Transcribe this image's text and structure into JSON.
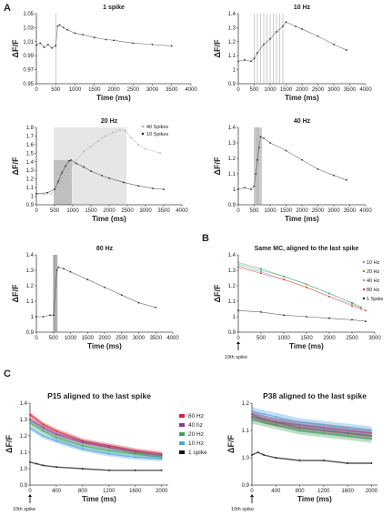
{
  "panels": {
    "A": "A",
    "B": "B",
    "C": "C"
  },
  "annotations": {
    "tenth_spike": "10th spike"
  },
  "chart_data": [
    {
      "id": "a1",
      "panel": "A",
      "type": "scatter",
      "title": "1 spike",
      "xlabel": "Time (ms)",
      "ylabel": "ΔF/F",
      "xlim": [
        0,
        4000
      ],
      "ylim": [
        0.95,
        1.05
      ],
      "xticks": [
        0,
        500,
        1000,
        1500,
        2000,
        2500,
        3000,
        3500,
        4000
      ],
      "yticks": [
        0.95,
        0.97,
        0.99,
        1.01,
        1.03,
        1.05
      ],
      "yticklabels": [
        "0.95",
        "0.97",
        "0.99",
        "1.01",
        "1.03",
        "1.05"
      ],
      "stim_lines": [
        510
      ],
      "series": [
        {
          "color": "#333333",
          "x": [
            0,
            100,
            200,
            300,
            400,
            500,
            550,
            600,
            700,
            800,
            1000,
            1200,
            1500,
            1800,
            2000,
            2500,
            3000,
            3500
          ],
          "y": [
            1.005,
            1.008,
            1.002,
            1.006,
            1.001,
            1.004,
            1.032,
            1.034,
            1.03,
            1.027,
            1.022,
            1.02,
            1.016,
            1.013,
            1.012,
            1.008,
            1.006,
            1.004
          ]
        }
      ]
    },
    {
      "id": "a2",
      "panel": "A",
      "type": "scatter",
      "title": "10 Hz",
      "xlabel": "Time (ms)",
      "ylabel": "ΔF/F",
      "xlim": [
        0,
        4000
      ],
      "ylim": [
        0.9,
        1.4
      ],
      "xticks": [
        0,
        500,
        1000,
        1500,
        2000,
        2500,
        3000,
        3500,
        4000
      ],
      "yticks": [
        0.9,
        1.0,
        1.1,
        1.2,
        1.3,
        1.4
      ],
      "yticklabels": [
        "0.9",
        "1",
        "1.1",
        "1.2",
        "1.3",
        "1.4"
      ],
      "stim_lines": [
        500,
        600,
        700,
        800,
        900,
        1000,
        1100,
        1200,
        1300,
        1400
      ],
      "series": [
        {
          "color": "#333333",
          "x": [
            0,
            200,
            400,
            500,
            600,
            800,
            1000,
            1200,
            1400,
            1500,
            1800,
            2000,
            2500,
            3000,
            3400
          ],
          "y": [
            1.06,
            1.07,
            1.06,
            1.08,
            1.12,
            1.18,
            1.22,
            1.27,
            1.31,
            1.34,
            1.31,
            1.29,
            1.24,
            1.18,
            1.14
          ]
        }
      ]
    },
    {
      "id": "a3",
      "panel": "A",
      "type": "scatter",
      "title": "20 Hz",
      "xlabel": "Time (ms)",
      "ylabel": "ΔF/F",
      "xlim": [
        0,
        4000
      ],
      "ylim": [
        0.9,
        1.8
      ],
      "xticks": [
        0,
        500,
        1000,
        1500,
        2000,
        2500,
        3000,
        3500,
        4000
      ],
      "yticks": [
        0.9,
        1.0,
        1.1,
        1.2,
        1.3,
        1.4,
        1.5,
        1.6,
        1.7,
        1.8
      ],
      "yticklabels": [
        "0.9",
        "1",
        "1.1",
        "1.2",
        "1.3",
        "1.4",
        "1.5",
        "1.6",
        "1.7",
        "1.8"
      ],
      "stim_lines_40": [
        500,
        550,
        600,
        650,
        700,
        750,
        800,
        850,
        900,
        950,
        1000,
        1050,
        1100,
        1150,
        1200,
        1250,
        1300,
        1350,
        1400,
        1450,
        1500,
        1550,
        1600,
        1650,
        1700,
        1750,
        1800,
        1850,
        1900,
        1950,
        2000,
        2050,
        2100,
        2150,
        2200,
        2250,
        2300,
        2350,
        2400,
        2450
      ],
      "stim_lines_10": [
        500,
        550,
        600,
        650,
        700,
        750,
        800,
        850,
        900,
        950
      ],
      "legend": [
        "40 Spikes",
        "10 Spikes"
      ],
      "series": [
        {
          "name": "40 Spikes",
          "color": "#b0b0b0",
          "x": [
            0,
            200,
            400,
            500,
            700,
            900,
            1100,
            1300,
            1500,
            1700,
            1900,
            2100,
            2300,
            2450,
            2600,
            2800,
            3000,
            3400
          ],
          "y": [
            1.02,
            1.02,
            1.03,
            1.06,
            1.2,
            1.32,
            1.42,
            1.52,
            1.58,
            1.64,
            1.7,
            1.74,
            1.77,
            1.76,
            1.68,
            1.6,
            1.55,
            1.5
          ]
        },
        {
          "name": "10 Spikes",
          "color": "#222222",
          "x": [
            0,
            300,
            500,
            600,
            700,
            800,
            900,
            950,
            1100,
            1300,
            1500,
            1800,
            2000,
            2400,
            2800,
            3200,
            3500
          ],
          "y": [
            1.03,
            1.04,
            1.08,
            1.17,
            1.27,
            1.35,
            1.41,
            1.42,
            1.38,
            1.34,
            1.29,
            1.24,
            1.21,
            1.16,
            1.12,
            1.09,
            1.08
          ]
        }
      ]
    },
    {
      "id": "a4",
      "panel": "A",
      "type": "scatter",
      "title": "40 Hz",
      "xlabel": "Time (ms)",
      "ylabel": "ΔF/F",
      "xlim": [
        0,
        4000
      ],
      "ylim": [
        0.9,
        1.4
      ],
      "xticks": [
        0,
        500,
        1000,
        1500,
        2000,
        2500,
        3000,
        3500,
        4000
      ],
      "yticks": [
        0.9,
        1.0,
        1.1,
        1.2,
        1.3,
        1.4
      ],
      "yticklabels": [
        "0.9",
        "1",
        "1.1",
        "1.2",
        "1.3",
        "1.4"
      ],
      "stim_lines": [
        500,
        525,
        550,
        575,
        600,
        625,
        650,
        675,
        700,
        725
      ],
      "series": [
        {
          "color": "#333333",
          "x": [
            0,
            200,
            400,
            500,
            550,
            600,
            650,
            700,
            800,
            1000,
            1500,
            2000,
            2500,
            3000,
            3400
          ],
          "y": [
            1.0,
            1.01,
            1.0,
            1.02,
            1.1,
            1.19,
            1.27,
            1.34,
            1.33,
            1.3,
            1.25,
            1.19,
            1.13,
            1.09,
            1.06
          ]
        }
      ]
    },
    {
      "id": "a5",
      "panel": "A",
      "type": "scatter",
      "title": "80 Hz",
      "xlabel": "Time (ms)",
      "ylabel": "ΔF/F",
      "xlim": [
        0,
        4000
      ],
      "ylim": [
        0.9,
        1.4
      ],
      "xticks": [
        0,
        500,
        1000,
        1500,
        2000,
        2500,
        3000,
        3500,
        4000
      ],
      "yticks": [
        0.9,
        1.0,
        1.1,
        1.2,
        1.3,
        1.4
      ],
      "yticklabels": [
        "0.9",
        "1",
        "1.1",
        "1.2",
        "1.3",
        "1.4"
      ],
      "stim_lines": [
        500,
        512,
        525,
        537,
        550,
        562,
        575,
        587,
        600,
        612
      ],
      "series": [
        {
          "color": "#333333",
          "x": [
            0,
            200,
            400,
            500,
            600,
            650,
            800,
            1000,
            1500,
            2000,
            2500,
            3000,
            3500
          ],
          "y": [
            1.0,
            1.0,
            1.01,
            1.01,
            1.3,
            1.32,
            1.31,
            1.29,
            1.24,
            1.19,
            1.14,
            1.09,
            1.06
          ]
        }
      ]
    },
    {
      "id": "b",
      "panel": "B",
      "type": "scatter",
      "title": "Same MC, aligned to the last spike",
      "xlabel": "Time (ms)",
      "ylabel": "ΔF/F",
      "xlim": [
        0,
        3000
      ],
      "ylim": [
        0.9,
        1.4
      ],
      "xticks": [
        0,
        500,
        1000,
        1500,
        2000,
        2500,
        3000
      ],
      "yticks": [
        0.9,
        1.0,
        1.1,
        1.2,
        1.3,
        1.4
      ],
      "yticklabels": [
        "0.9",
        "1",
        "1.1",
        "1.2",
        "1.3",
        "1.4"
      ],
      "legend": [
        "10 Hz",
        "20 Hz",
        "40 Hz",
        "80 Hz",
        "1 Spike"
      ],
      "series": [
        {
          "name": "10 Hz",
          "color": "#3aaed8",
          "x": [
            0,
            500,
            1000,
            1500,
            2000,
            2500,
            2700
          ],
          "y": [
            1.34,
            1.3,
            1.26,
            1.21,
            1.15,
            1.09,
            1.06
          ]
        },
        {
          "name": "20 Hz",
          "color": "#4a9a3c",
          "x": [
            0,
            500,
            1000,
            1500,
            2000,
            2500,
            2700
          ],
          "y": [
            1.35,
            1.31,
            1.26,
            1.21,
            1.15,
            1.09,
            1.06
          ]
        },
        {
          "name": "40 Hz",
          "color": "#9a9a9a",
          "x": [
            0,
            500,
            1000,
            1500,
            2000,
            2500,
            2700
          ],
          "y": [
            1.33,
            1.29,
            1.24,
            1.19,
            1.13,
            1.08,
            1.05
          ]
        },
        {
          "name": "80 Hz",
          "color": "#e0341e",
          "x": [
            0,
            500,
            1000,
            1500,
            2000,
            2500,
            2800
          ],
          "y": [
            1.32,
            1.28,
            1.24,
            1.19,
            1.13,
            1.07,
            1.04
          ]
        },
        {
          "name": "1 Spike",
          "color": "#222222",
          "x": [
            0,
            500,
            1000,
            1500,
            2000,
            2500,
            2800
          ],
          "y": [
            1.04,
            1.03,
            1.01,
            1.0,
            0.99,
            0.98,
            0.97
          ]
        }
      ]
    },
    {
      "id": "c1",
      "panel": "C",
      "type": "scatter",
      "title": "P15 aligned to the last spike",
      "xlabel": "Time (ms)",
      "ylabel": "ΔF/F",
      "xlim": [
        0,
        2100
      ],
      "ylim": [
        0.9,
        1.4
      ],
      "xticks": [
        0,
        400,
        800,
        1200,
        1600,
        2000
      ],
      "yticks": [
        0.9,
        1.0,
        1.1,
        1.2,
        1.3,
        1.4
      ],
      "yticklabels": [
        "0.9",
        "1.0",
        "1.1",
        "1.2",
        "1.3",
        "1.4"
      ],
      "legend": [
        "80 Hz",
        "40 hz",
        "20 Hz",
        "10 Hz",
        "1 spike"
      ],
      "series": [
        {
          "name": "80 Hz",
          "color": "#d9222e",
          "x": [
            0,
            200,
            400,
            800,
            1200,
            1600,
            2000
          ],
          "y": [
            1.33,
            1.27,
            1.23,
            1.17,
            1.14,
            1.11,
            1.09
          ]
        },
        {
          "name": "40 hz",
          "color": "#8a3a93",
          "x": [
            0,
            200,
            400,
            800,
            1200,
            1600,
            2000
          ],
          "y": [
            1.3,
            1.25,
            1.21,
            1.16,
            1.13,
            1.1,
            1.08
          ]
        },
        {
          "name": "20 Hz",
          "color": "#3aa655",
          "x": [
            0,
            200,
            400,
            800,
            1200,
            1600,
            2000
          ],
          "y": [
            1.28,
            1.23,
            1.19,
            1.14,
            1.11,
            1.09,
            1.07
          ]
        },
        {
          "name": "10 Hz",
          "color": "#4fa3dc",
          "x": [
            0,
            200,
            400,
            800,
            1200,
            1600,
            2000
          ],
          "y": [
            1.25,
            1.2,
            1.17,
            1.12,
            1.09,
            1.07,
            1.06
          ]
        },
        {
          "name": "1 spike",
          "color": "#111111",
          "x": [
            0,
            100,
            200,
            400,
            800,
            1200,
            1600,
            2000
          ],
          "y": [
            1.04,
            1.03,
            1.02,
            1.01,
            1.0,
            0.99,
            0.99,
            0.99
          ]
        }
      ]
    },
    {
      "id": "c2",
      "panel": "C",
      "type": "scatter",
      "title": "P38 aligned to the last spike",
      "xlabel": "Time (ms)",
      "ylabel": "ΔF/F",
      "xlim": [
        0,
        2100
      ],
      "ylim": [
        0.9,
        1.2
      ],
      "xticks": [
        0,
        400,
        800,
        1200,
        1600,
        2000
      ],
      "yticks": [
        0.9,
        1.0,
        1.1,
        1.2
      ],
      "yticklabels": [
        "0.9",
        "1.0",
        "1.1",
        "1.2"
      ],
      "series": [
        {
          "name": "80 Hz",
          "color": "#d9222e",
          "x": [
            0,
            200,
            400,
            800,
            1200,
            1600,
            2000
          ],
          "y": [
            1.16,
            1.14,
            1.13,
            1.12,
            1.11,
            1.1,
            1.09
          ]
        },
        {
          "name": "40 hz",
          "color": "#8a3a93",
          "x": [
            0,
            200,
            400,
            800,
            1200,
            1600,
            2000
          ],
          "y": [
            1.15,
            1.14,
            1.13,
            1.11,
            1.1,
            1.09,
            1.08
          ]
        },
        {
          "name": "20 Hz",
          "color": "#3aa655",
          "x": [
            0,
            200,
            400,
            800,
            1200,
            1600,
            2000
          ],
          "y": [
            1.14,
            1.13,
            1.12,
            1.1,
            1.09,
            1.08,
            1.07
          ]
        },
        {
          "name": "10 Hz",
          "color": "#4fa3dc",
          "x": [
            0,
            200,
            400,
            800,
            1200,
            1600,
            2000
          ],
          "y": [
            1.17,
            1.16,
            1.15,
            1.13,
            1.12,
            1.11,
            1.1
          ]
        },
        {
          "name": "1 spike",
          "color": "#111111",
          "x": [
            0,
            100,
            200,
            400,
            800,
            1200,
            1600,
            2000
          ],
          "y": [
            1.01,
            1.02,
            1.01,
            1.0,
            0.99,
            0.99,
            0.98,
            0.98
          ]
        }
      ]
    }
  ]
}
